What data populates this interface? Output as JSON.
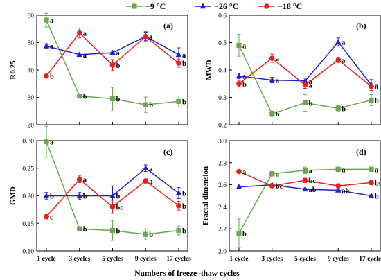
{
  "legend": [
    {
      "name": "−9 °C",
      "color": "#6aa84f",
      "marker": "square"
    },
    {
      "name": "−26 °C",
      "color": "#1f1fd6",
      "marker": "triangle"
    },
    {
      "name": "−18 °C",
      "color": "#e8201c",
      "marker": "circle"
    }
  ],
  "xlabel": "Numbers of freeze–thaw cycles",
  "categories": [
    "1 cycle",
    "3 cycles",
    "5 cycles",
    "9 cycles",
    "17 cycles"
  ],
  "chart_data": [
    {
      "type": "line",
      "panel": "(a)",
      "ylabel": "R0.25",
      "ylim": [
        20,
        60
      ],
      "yticks": [
        20,
        30,
        40,
        50,
        60
      ],
      "series": [
        {
          "name": "−9 °C",
          "values": [
            58.2,
            30.5,
            29.5,
            27.3,
            28.5
          ],
          "errors": [
            2.5,
            0.5,
            4.2,
            2.8,
            2.0
          ],
          "labels": [
            "a",
            "b",
            "b",
            "b",
            "b"
          ]
        },
        {
          "name": "−26 °C",
          "values": [
            48.8,
            45.6,
            46.3,
            52.3,
            45.6
          ],
          "errors": [
            0.8,
            0.6,
            0.5,
            1.5,
            2.5
          ],
          "labels": [
            "a",
            "a",
            "a",
            "a",
            "a"
          ]
        },
        {
          "name": "−18 °C",
          "values": [
            37.8,
            53.5,
            41.8,
            52.2,
            42.5
          ],
          "errors": [
            0.5,
            1.8,
            2.0,
            1.8,
            1.5
          ],
          "labels": [
            "b",
            "a",
            "b",
            "a",
            "b"
          ]
        }
      ]
    },
    {
      "type": "line",
      "panel": "(b)",
      "ylabel": "MWD",
      "ylim": [
        0.2,
        0.6
      ],
      "yticks": [
        0.2,
        0.3,
        0.4,
        0.5,
        0.6
      ],
      "series": [
        {
          "name": "−9 °C",
          "values": [
            0.49,
            0.24,
            0.28,
            0.26,
            0.29
          ],
          "errors": [
            0.04,
            0.01,
            0.03,
            0.01,
            0.02
          ],
          "labels": [
            "a",
            "b",
            "b",
            "b",
            "b"
          ]
        },
        {
          "name": "−26 °C",
          "values": [
            0.378,
            0.363,
            0.36,
            0.502,
            0.345
          ],
          "errors": [
            0.01,
            0.01,
            0.01,
            0.015,
            0.02
          ],
          "labels": [
            "a",
            "a",
            "a",
            "a",
            "a"
          ]
        },
        {
          "name": "−18 °C",
          "values": [
            0.35,
            0.443,
            0.345,
            0.437,
            0.34
          ],
          "errors": [
            0.01,
            0.015,
            0.012,
            0.01,
            0.015
          ],
          "labels": [
            "b",
            "a",
            "a",
            "a",
            "a"
          ]
        }
      ]
    },
    {
      "type": "line",
      "panel": "(c)",
      "ylabel": "GMD",
      "ylim": [
        0.1,
        0.3
      ],
      "yticks": [
        0.1,
        0.15,
        0.2,
        0.25,
        0.3
      ],
      "series": [
        {
          "name": "−9 °C",
          "values": [
            0.298,
            0.14,
            0.137,
            0.13,
            0.137
          ],
          "errors": [
            0.028,
            0.003,
            0.018,
            0.01,
            0.008
          ],
          "labels": [
            "a",
            "b",
            "b",
            "b",
            "b"
          ]
        },
        {
          "name": "−26 °C",
          "values": [
            0.2,
            0.2,
            0.2,
            0.25,
            0.205
          ],
          "errors": [
            0.006,
            0.006,
            0.018,
            0.006,
            0.01
          ],
          "labels": [
            "b",
            "b",
            "b",
            "a",
            "b"
          ]
        },
        {
          "name": "−18 °C",
          "values": [
            0.162,
            0.23,
            0.18,
            0.227,
            0.182
          ],
          "errors": [
            0.004,
            0.006,
            0.012,
            0.004,
            0.008
          ],
          "labels": [
            "c",
            "a",
            "bc",
            "a",
            "b"
          ]
        }
      ]
    },
    {
      "type": "line",
      "panel": "(d)",
      "ylabel": "Fractal dimension",
      "ylim": [
        2.0,
        3.0
      ],
      "yticks": [
        2.0,
        2.2,
        2.4,
        2.6,
        2.8,
        3.0
      ],
      "series": [
        {
          "name": "−9 °C",
          "values": [
            2.16,
            2.7,
            2.73,
            2.74,
            2.74
          ],
          "errors": [
            0.13,
            0.02,
            0.03,
            0.02,
            0.02
          ],
          "labels": [
            "b",
            "a",
            "a",
            "a",
            "a"
          ]
        },
        {
          "name": "−26 °C",
          "values": [
            2.58,
            2.6,
            2.56,
            2.55,
            2.5
          ],
          "errors": [
            0.01,
            0.01,
            0.01,
            0.01,
            0.01
          ],
          "labels": [
            "",
            "a",
            "ab",
            "ab",
            "b"
          ]
        },
        {
          "name": "−18 °C",
          "values": [
            2.72,
            2.59,
            2.64,
            2.59,
            2.62
          ],
          "errors": [
            0.01,
            0.01,
            0.02,
            0.02,
            0.02
          ],
          "labels": [
            "a",
            "bc",
            "bc",
            "",
            "bc"
          ]
        }
      ]
    }
  ]
}
